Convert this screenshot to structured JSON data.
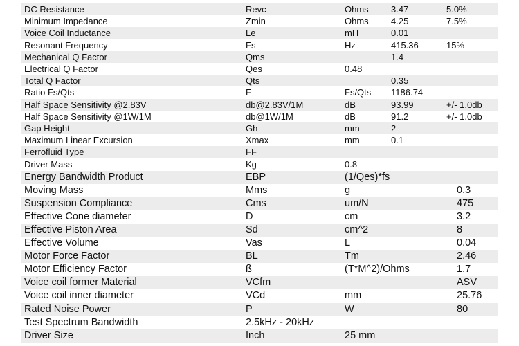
{
  "sections": [
    {
      "rows": [
        {
          "param": "DC Resistance",
          "symbol": "Revc",
          "unit": "Ohms",
          "value": "3.47",
          "note": "5.0%"
        },
        {
          "param": "Minimum Impedance",
          "symbol": "Zmin",
          "unit": "Ohms",
          "value": "4.25",
          "note": "7.5%"
        },
        {
          "param": "Voice Coil Inductance",
          "symbol": "Le",
          "unit": "mH",
          "value": "0.01"
        },
        {
          "param": "Resonant Frequency",
          "symbol": "Fs",
          "unit": "Hz",
          "value": "415.36",
          "note": "15%"
        },
        {
          "param": "Mechanical Q Factor",
          "symbol": "Qms",
          "value": "1.4"
        },
        {
          "param": "Electrical Q Factor",
          "symbol": "Qes",
          "unit": "0.48"
        },
        {
          "param": "Total Q Factor",
          "symbol": "Qts",
          "value": "0.35"
        },
        {
          "param": "Ratio Fs/Qts",
          "symbol": "F",
          "unit": "Fs/Qts",
          "value": "1186.74"
        },
        {
          "param": "Half Space Sensitivity @2.83V",
          "symbol": "db@2.83V/1M",
          "unit": "dB",
          "value": "93.99",
          "note": "+/- 1.0db"
        },
        {
          "param": "Half Space Sensitivity @1W/1M",
          "symbol": "db@1W/1M",
          "unit": "dB",
          "value": "91.2",
          "note": "+/- 1.0db"
        },
        {
          "param": "Gap Height",
          "symbol": "Gh",
          "unit": "mm",
          "value": "2"
        },
        {
          "param": "Maximum Linear Excursion",
          "symbol": "Xmax",
          "unit": "mm",
          "value": "0.1"
        },
        {
          "param": "Ferrofluid Type",
          "symbol": "FF"
        },
        {
          "param": "Driver Mass",
          "symbol": "Kg",
          "unit": "0.8"
        }
      ]
    },
    {
      "rows": [
        {
          "param": "Energy Bandwidth Product",
          "symbol": "EBP",
          "unit": "(1/Qes)*fs"
        },
        {
          "param": "Moving Mass",
          "symbol": "Mms",
          "unit": "g",
          "value": "0.3"
        },
        {
          "param": "Suspension Compliance",
          "symbol": "Cms",
          "unit": "um/N",
          "value": "475"
        },
        {
          "param": "Effective Cone diameter",
          "symbol": "D",
          "unit": "cm",
          "value": "3.2"
        },
        {
          "param": "Effective Piston Area",
          "symbol": "Sd",
          "unit": "cm^2",
          "value": "8"
        },
        {
          "param": "Effective Volume",
          "symbol": "Vas",
          "unit": "L",
          "value": "0.04"
        },
        {
          "param": "Motor Force Factor",
          "symbol": "BL",
          "unit": "Tm",
          "value": "2.46"
        },
        {
          "param": "Motor Efficiency Factor",
          "symbol": "ß",
          "unit": "(T*M^2)/Ohms",
          "value": "1.7"
        },
        {
          "param": "Voice coil former Material",
          "symbol": "VCfm",
          "value": "ASV"
        },
        {
          "param": "Voice coil inner diameter",
          "symbol": "VCd",
          "unit": "mm",
          "value": "25.76"
        },
        {
          "param": "Rated Noise Power",
          "symbol": "P",
          "unit": "W",
          "value": "80"
        },
        {
          "param": "Test Spectrum Bandwidth",
          "symbol": "2.5kHz - 20kHz"
        },
        {
          "param": "Driver Size",
          "symbol": "Inch",
          "unit": "25 mm"
        }
      ]
    }
  ]
}
